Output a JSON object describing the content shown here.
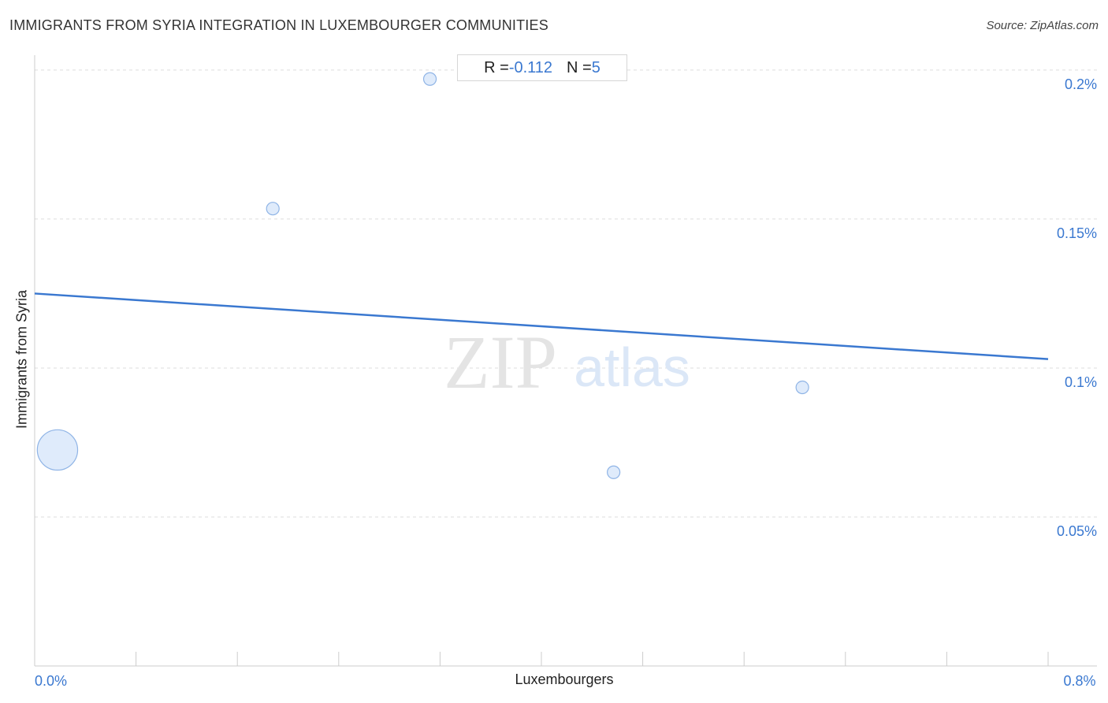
{
  "header": {
    "title": "IMMIGRANTS FROM SYRIA INTEGRATION IN LUXEMBOURGER COMMUNITIES",
    "source": "Source: ZipAtlas.com"
  },
  "stats": {
    "r_label": "R = ",
    "r_value": "-0.112",
    "n_label": "N = ",
    "n_value": "5"
  },
  "watermark": {
    "zip": "ZIP",
    "atlas": "atlas"
  },
  "colors": {
    "point_fill": "#dce9fb",
    "point_stroke": "#8fb4e6",
    "trend_line": "#3a78d0",
    "tick_label": "#3a78d0",
    "grid": "#dddddd"
  },
  "chart_data": {
    "type": "scatter",
    "title": "IMMIGRANTS FROM SYRIA INTEGRATION IN LUXEMBOURGER COMMUNITIES",
    "xlabel": "Luxembourgers",
    "ylabel": "Immigrants from Syria",
    "xlim": [
      0,
      0.8
    ],
    "ylim": [
      0.0,
      0.205
    ],
    "x_tick_labels": [
      {
        "value": 0,
        "label": "0.0%"
      },
      {
        "value": 0.8,
        "label": "0.8%"
      }
    ],
    "y_tick_labels": [
      {
        "value": 0.2,
        "label": "0.2%"
      },
      {
        "value": 0.15,
        "label": "0.15%"
      },
      {
        "value": 0.1,
        "label": "0.1%"
      },
      {
        "value": 0.05,
        "label": "0.05%"
      }
    ],
    "grid": true,
    "points": [
      {
        "x": 0.018,
        "y": 0.0725,
        "size": 3.2
      },
      {
        "x": 0.188,
        "y": 0.1535,
        "size": 1.0
      },
      {
        "x": 0.312,
        "y": 0.197,
        "size": 1.0
      },
      {
        "x": 0.457,
        "y": 0.065,
        "size": 1.0
      },
      {
        "x": 0.606,
        "y": 0.0935,
        "size": 1.0
      }
    ],
    "trend_line": {
      "x": [
        0,
        0.8
      ],
      "y": [
        0.125,
        0.103
      ]
    },
    "r": -0.112,
    "n": 5
  }
}
